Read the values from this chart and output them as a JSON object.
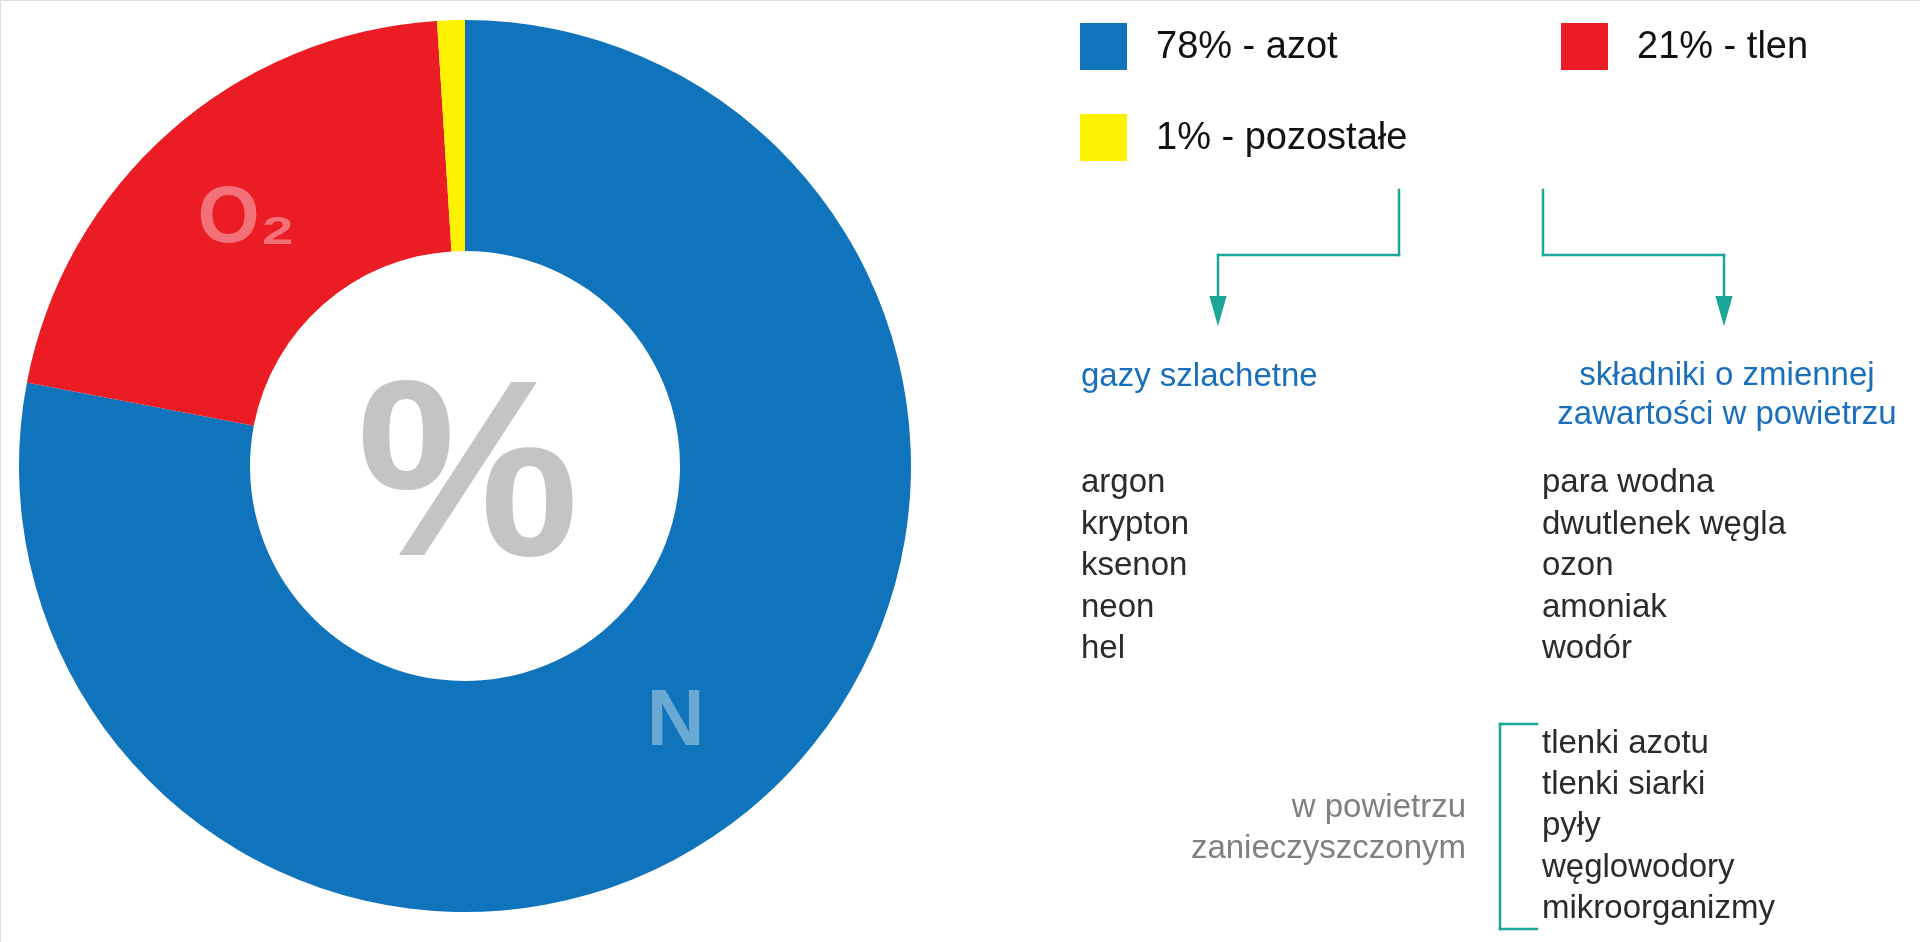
{
  "chart_data": {
    "type": "donut",
    "categories": [
      "78% - azot",
      "21% - tlen",
      "1% - pozostałe"
    ],
    "values": [
      78,
      21,
      1
    ],
    "colors": [
      "#1074bc",
      "#ec1c24",
      "#fff200"
    ],
    "legend": "top right",
    "annotations": [
      "%",
      {
        "text": "N",
        "x": "78% - azot"
      },
      {
        "text": "O₂",
        "x": "21% - tlen"
      },
      "gazy szlachetne",
      "składniki o zmiennej\nzawartości w powietrzu",
      "argon\nkrypton\nksenon\nneon\nhel",
      "para wodna\ndwutlenek węgla\nozon\namoniak\nwodór",
      "w powietrzu\nzanieczyszczonym",
      "tlenki azotu\ntlenki siarki\npyły\nwęglowodory\nmikroorganizmy"
    ]
  }
}
